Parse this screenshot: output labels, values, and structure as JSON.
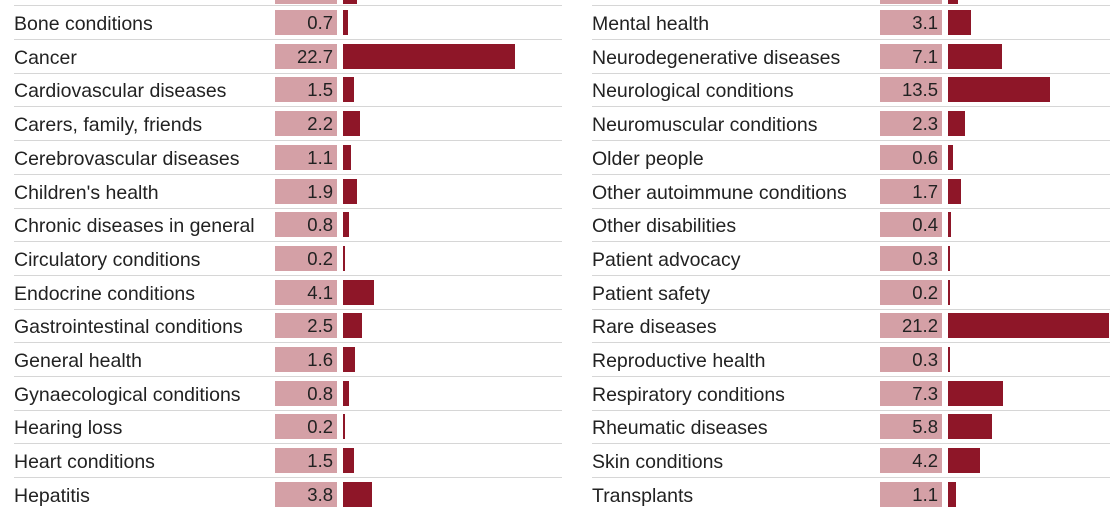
{
  "chart_data": {
    "type": "bar",
    "orientation": "horizontal",
    "panels": [
      {
        "categories": [
          "Bone conditions",
          "Cancer",
          "Cardiovascular diseases",
          "Carers, family, friends",
          "Cerebrovascular diseases",
          "Children's health",
          "Chronic diseases in general",
          "Circulatory conditions",
          "Endocrine conditions",
          "Gastrointestinal conditions",
          "General health",
          "Gynaecological conditions",
          "Hearing loss",
          "Heart conditions",
          "Hepatitis"
        ],
        "values": [
          0.7,
          22.7,
          1.5,
          2.2,
          1.1,
          1.9,
          0.8,
          0.2,
          4.1,
          2.5,
          1.6,
          0.8,
          0.2,
          1.5,
          3.8
        ],
        "labels": [
          "0.7",
          "22.7",
          "1.5",
          "2.2",
          "1.1",
          "1.9",
          "0.8",
          "0.2",
          "4.1",
          "2.5",
          "1.6",
          "0.8",
          "0.2",
          "1.5",
          "3.8"
        ]
      },
      {
        "categories": [
          "Mental health",
          "Neurodegenerative diseases",
          "Neurological conditions",
          "Neuromuscular conditions",
          "Older people",
          "Other autoimmune conditions",
          "Other disabilities",
          "Patient advocacy",
          "Patient safety",
          "Rare diseases",
          "Reproductive health",
          "Respiratory conditions",
          "Rheumatic diseases",
          "Skin conditions",
          "Transplants"
        ],
        "values": [
          3.1,
          7.1,
          13.5,
          2.3,
          0.6,
          1.7,
          0.4,
          0.3,
          0.2,
          21.2,
          0.3,
          7.3,
          5.8,
          4.2,
          1.1
        ],
        "labels": [
          "3.1",
          "7.1",
          "13.5",
          "2.3",
          "0.6",
          "1.7",
          "0.4",
          "0.3",
          "0.2",
          "21.2",
          "0.3",
          "7.3",
          "5.8",
          "4.2",
          "1.1"
        ]
      }
    ],
    "colors": {
      "bar": "#8e1628",
      "value_box": "#d4a0a6",
      "separator": "#d6d6d6"
    },
    "grid": false,
    "legend": "none"
  }
}
